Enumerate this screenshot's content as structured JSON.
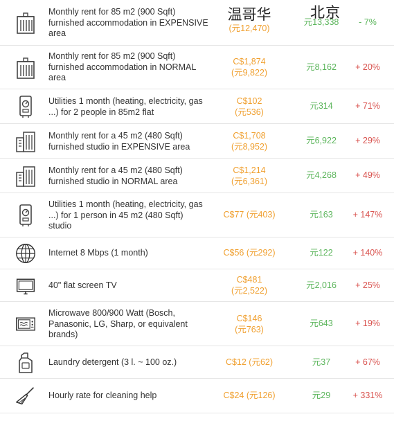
{
  "header": {
    "city1": "温哥华",
    "city2": "北京"
  },
  "colors": {
    "vancouver_value": "#f0a030",
    "beijing_value": "#5bb55b",
    "increase": "#d9534f",
    "decrease": "#5bb55b"
  },
  "rows": [
    {
      "icon": "building-icon",
      "desc": [
        "Monthly rent for 85 m2 (900 Sqft)",
        "furnished accommodation in EXPENSIVE",
        "area"
      ],
      "van": [
        "温哥华",
        "(元12,470)"
      ],
      "bj": [
        "元13,338"
      ],
      "pct": "- 7%",
      "negative": true
    },
    {
      "icon": "building-icon",
      "desc": [
        "Monthly rent for 85 m2 (900 Sqft)",
        "furnished accommodation in NORMAL",
        "area"
      ],
      "van": [
        "C$1,874",
        "(元9,822)"
      ],
      "bj": [
        "元8,162"
      ],
      "pct": "+ 20%"
    },
    {
      "icon": "utilities-meter-icon",
      "desc": [
        "Utilities 1 month (heating, electricity, gas",
        "...) for 2 people in 85m2 flat"
      ],
      "van": [
        "C$102",
        "(元536)"
      ],
      "bj": [
        "元314"
      ],
      "pct": "+ 71%"
    },
    {
      "icon": "studio-building-icon",
      "desc": [
        "Monthly rent for a 45 m2 (480 Sqft)",
        "furnished studio in EXPENSIVE area"
      ],
      "van": [
        "C$1,708",
        "(元8,952)"
      ],
      "bj": [
        "元6,922"
      ],
      "pct": "+ 29%"
    },
    {
      "icon": "studio-building-icon",
      "desc": [
        "Monthly rent for a 45 m2 (480 Sqft)",
        "furnished studio in NORMAL area"
      ],
      "van": [
        "C$1,214",
        "(元6,361)"
      ],
      "bj": [
        "元4,268"
      ],
      "pct": "+ 49%"
    },
    {
      "icon": "utilities-meter-icon",
      "desc": [
        "Utilities 1 month (heating, electricity, gas",
        "...) for 1 person in 45 m2 (480 Sqft)",
        "studio"
      ],
      "van": [
        "C$77 (元403)"
      ],
      "bj": [
        "元163"
      ],
      "pct": "+ 147%"
    },
    {
      "icon": "globe-icon",
      "desc": [
        "Internet 8 Mbps (1 month)"
      ],
      "van": [
        "C$56 (元292)"
      ],
      "bj": [
        "元122"
      ],
      "pct": "+ 140%"
    },
    {
      "icon": "tv-icon",
      "desc": [
        "40\" flat screen TV"
      ],
      "van": [
        "C$481",
        "(元2,522)"
      ],
      "bj": [
        "元2,016"
      ],
      "pct": "+ 25%"
    },
    {
      "icon": "microwave-icon",
      "desc": [
        "Microwave 800/900 Watt (Bosch,",
        "Panasonic, LG, Sharp, or equivalent",
        "brands)"
      ],
      "van": [
        "C$146",
        "(元763)"
      ],
      "bj": [
        "元643"
      ],
      "pct": "+ 19%"
    },
    {
      "icon": "detergent-bottle-icon",
      "desc": [
        "Laundry detergent (3 l. ~ 100 oz.)"
      ],
      "van": [
        "C$12 (元62)"
      ],
      "bj": [
        "元37"
      ],
      "pct": "+ 67%"
    },
    {
      "icon": "broom-icon",
      "desc": [
        "Hourly rate for cleaning help"
      ],
      "van": [
        "C$24 (元126)"
      ],
      "bj": [
        "元29"
      ],
      "pct": "+ 331%"
    }
  ]
}
